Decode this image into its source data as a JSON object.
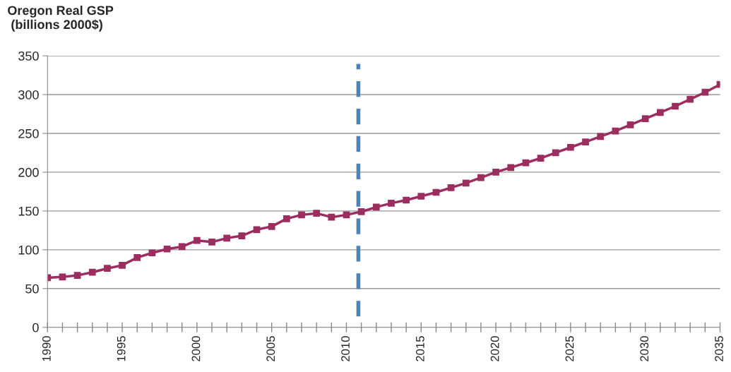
{
  "chart_data": {
    "type": "line",
    "title": "Oregon Real GSP\n (billions 2000$)",
    "x": [
      1990,
      1991,
      1992,
      1993,
      1994,
      1995,
      1996,
      1997,
      1998,
      1999,
      2000,
      2001,
      2002,
      2003,
      2004,
      2005,
      2006,
      2007,
      2008,
      2009,
      2010,
      2011,
      2012,
      2013,
      2014,
      2015,
      2016,
      2017,
      2018,
      2019,
      2020,
      2021,
      2022,
      2023,
      2024,
      2025,
      2026,
      2027,
      2028,
      2029,
      2030,
      2031,
      2032,
      2033,
      2034,
      2035
    ],
    "series": [
      {
        "color": "#9b2d5f",
        "values": [
          64,
          65,
          67,
          71,
          76,
          80,
          90,
          96,
          101,
          104,
          112,
          110,
          115,
          118,
          126,
          130,
          140,
          145,
          147,
          142,
          145,
          149,
          155,
          160,
          164,
          169,
          174,
          180,
          186,
          193,
          200,
          206,
          212,
          218,
          225,
          232,
          239,
          246,
          253,
          261,
          269,
          277,
          285,
          294,
          303,
          313
        ]
      }
    ],
    "xlim": [
      1990,
      2035
    ],
    "xticks": [
      1990,
      {
        "value": 1991,
        "label": null
      },
      {
        "value": 1992,
        "label": null
      },
      {
        "value": 1993,
        "label": null
      },
      {
        "value": 1994,
        "label": null
      },
      1995,
      {
        "value": 1996,
        "label": null
      },
      {
        "value": 1997,
        "label": null
      },
      {
        "value": 1998,
        "label": null
      },
      {
        "value": 1999,
        "label": null
      },
      2000,
      {
        "value": 2001,
        "label": null
      },
      {
        "value": 2002,
        "label": null
      },
      {
        "value": 2003,
        "label": null
      },
      {
        "value": 2004,
        "label": null
      },
      2005,
      {
        "value": 2006,
        "label": null
      },
      {
        "value": 2007,
        "label": null
      },
      {
        "value": 2008,
        "label": null
      },
      {
        "value": 2009,
        "label": null
      },
      2010,
      {
        "value": 2011,
        "label": null
      },
      {
        "value": 2012,
        "label": null
      },
      {
        "value": 2013,
        "label": null
      },
      {
        "value": 2014,
        "label": null
      },
      2015,
      {
        "value": 2016,
        "label": null
      },
      {
        "value": 2017,
        "label": null
      },
      {
        "value": 2018,
        "label": null
      },
      {
        "value": 2019,
        "label": null
      },
      2020,
      {
        "value": 2021,
        "label": null
      },
      {
        "value": 2022,
        "label": null
      },
      {
        "value": 2023,
        "label": null
      },
      {
        "value": 2024,
        "label": null
      },
      2025,
      {
        "value": 2026,
        "label": null
      },
      {
        "value": 2027,
        "label": null
      },
      {
        "value": 2028,
        "label": null
      },
      {
        "value": 2029,
        "label": null
      },
      2030,
      {
        "value": 2031,
        "label": null
      },
      {
        "value": 2032,
        "label": null
      },
      {
        "value": 2033,
        "label": null
      },
      {
        "value": 2034,
        "label": null
      },
      2035
    ],
    "ylim": [
      0,
      350
    ],
    "yticks": [
      0,
      50,
      100,
      150,
      200,
      250,
      300,
      350
    ],
    "ref_lines": [
      {
        "axis": "x",
        "value": 2010.8,
        "color": "#4f81bd",
        "line_style": "dashed"
      }
    ],
    "grid": "y",
    "marker": "square",
    "line_style": "solid"
  }
}
